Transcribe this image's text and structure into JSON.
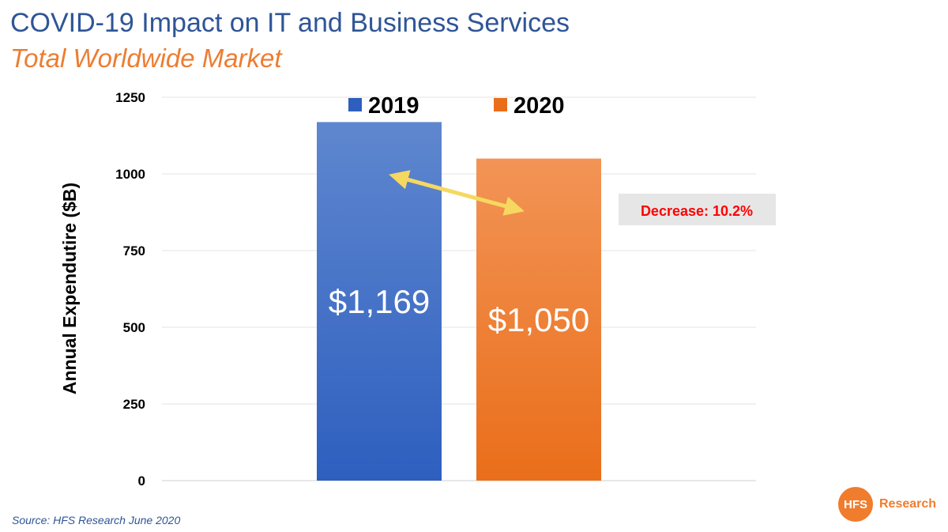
{
  "header": {
    "title": "COVID-19 Impact on IT and Business Services",
    "subtitle": "Total Worldwide Market"
  },
  "footer": {
    "source": "Source: HFS Research June 2020",
    "logo_mark": "HFS",
    "logo_text": "Research"
  },
  "colors": {
    "title": "#2f5597",
    "subtitle": "#ed7d31",
    "bar_2019_top": "#5f87cf",
    "bar_2019_bottom": "#2e5fbf",
    "bar_2020_top": "#f29456",
    "bar_2020_bottom": "#ea6e1a",
    "arrow": "#f6d860",
    "annotation_text": "#ff0000",
    "annotation_bg": "#e6e6e6"
  },
  "chart_data": {
    "type": "bar",
    "categories": [
      "2019",
      "2020"
    ],
    "values": [
      1169,
      1050
    ],
    "data_labels": [
      "$1,169",
      "$1,050"
    ],
    "legend": [
      "2019",
      "2020"
    ],
    "legend_position": "top",
    "ylabel": "Annual Expendutire ($B)",
    "xlabel": "",
    "ylim": [
      0,
      1250
    ],
    "yticks": [
      0,
      250,
      500,
      750,
      1000,
      1250
    ],
    "grid": true,
    "annotation": "Decrease:  10.2%"
  }
}
